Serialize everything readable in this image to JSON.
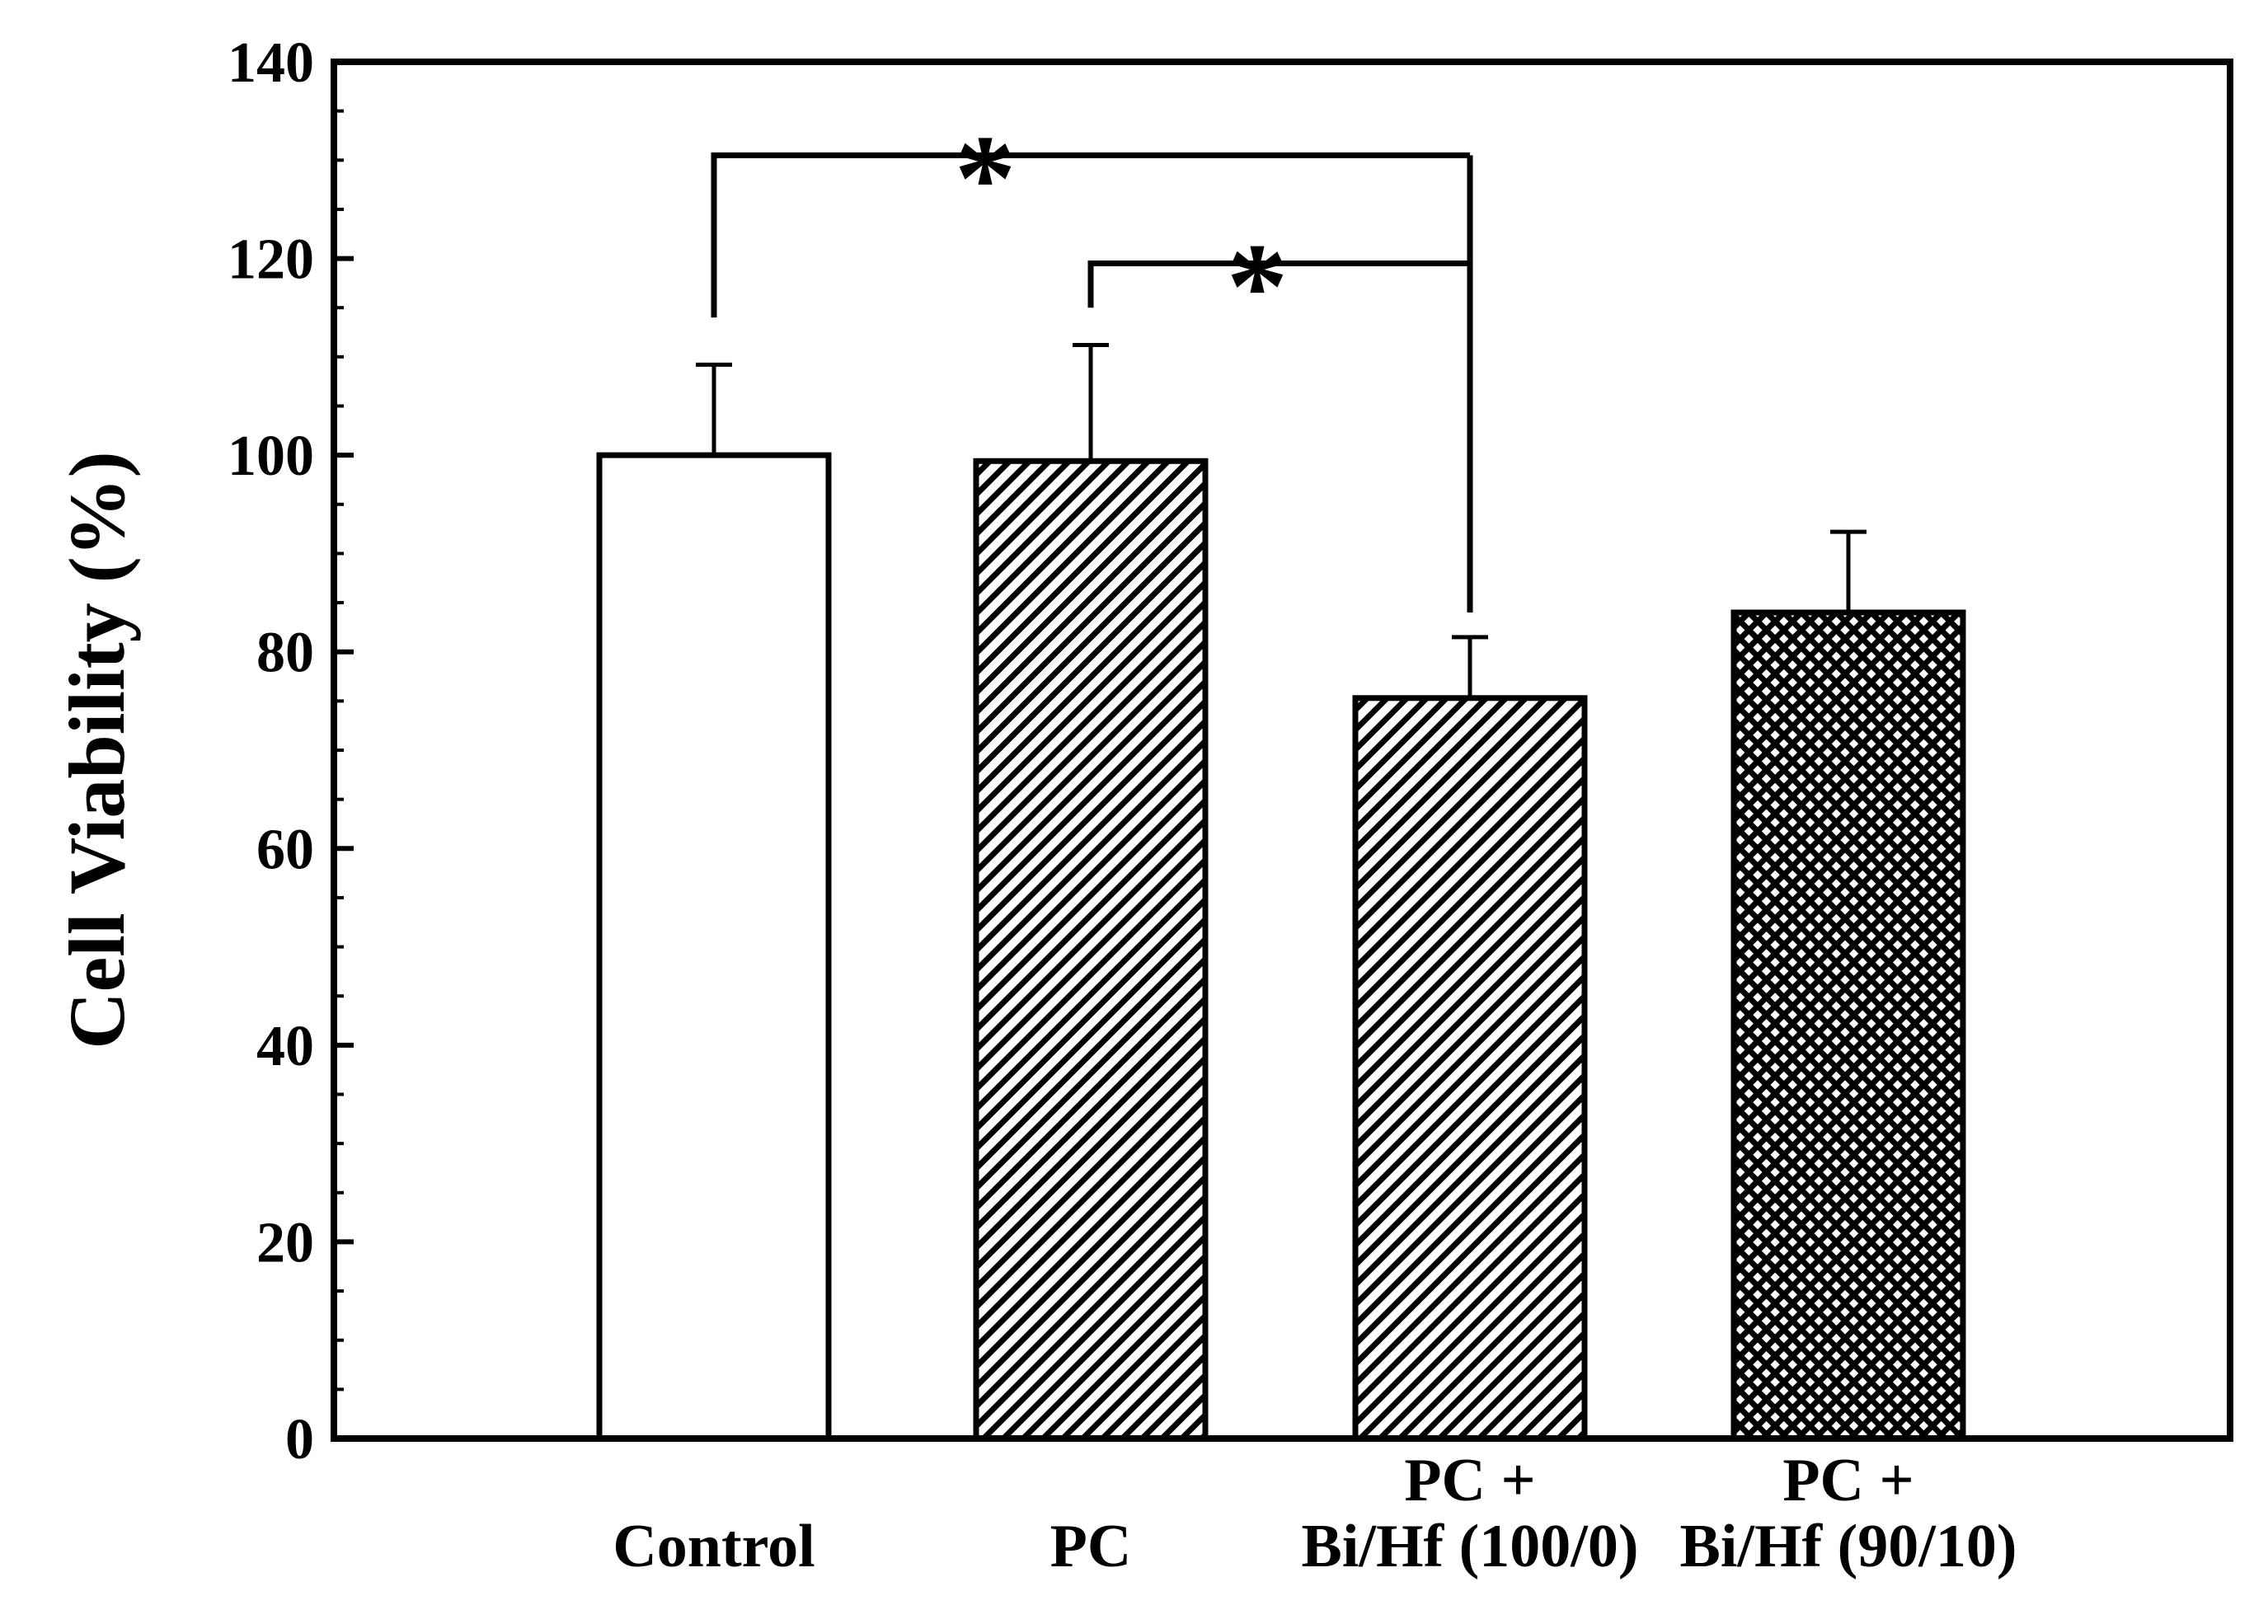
{
  "chart_data": {
    "type": "bar",
    "title": "",
    "xlabel": "",
    "ylabel": "Cell Viability (%)",
    "ylim": [
      0,
      140
    ],
    "yticks": [
      0,
      20,
      40,
      60,
      80,
      100,
      120,
      140
    ],
    "ytick_labels": [
      "0",
      "20",
      "40",
      "60",
      "80",
      "100",
      "120",
      "140"
    ],
    "categories": [
      [
        "Control"
      ],
      [
        "PC"
      ],
      [
        "PC +",
        "Bi/Hf (100/0)"
      ],
      [
        "PC +",
        "Bi/Hf (90/10)"
      ]
    ],
    "values": [
      100,
      99.4,
      75.3,
      84.0
    ],
    "errors": [
      9.2,
      11.8,
      6.2,
      8.2
    ],
    "fill_patterns": [
      "solid-white",
      "diagonal-hatch",
      "diagonal-hatch",
      "crosshatch"
    ],
    "significance": [
      {
        "from": 0,
        "to": 2,
        "label": "*",
        "y": 130.5
      },
      {
        "from": 1,
        "to": 2,
        "label": "*",
        "y": 119.5
      }
    ],
    "grid": false
  }
}
